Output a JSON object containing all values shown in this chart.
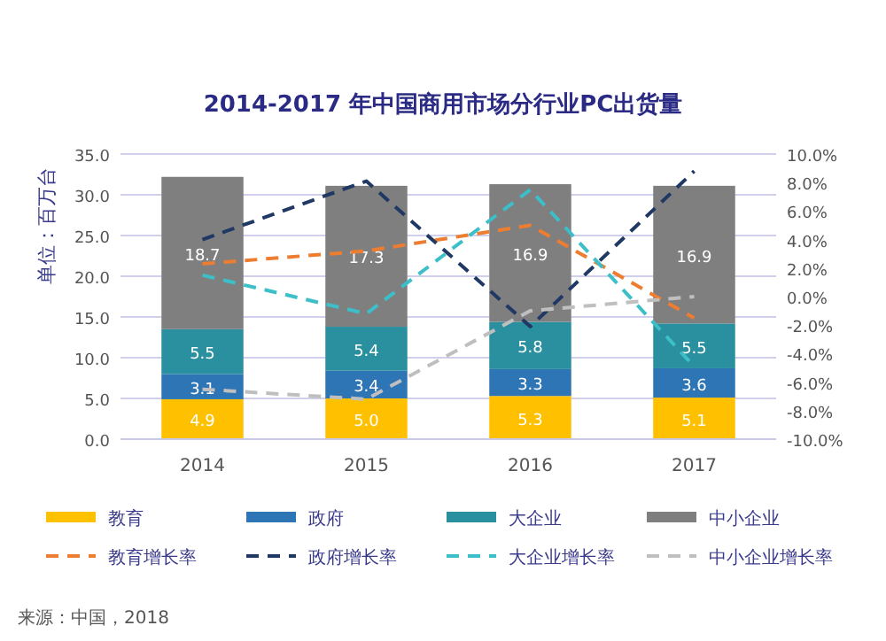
{
  "chart_data": {
    "type": "bar",
    "title": "2014-2017 年中国商用市场分行业PC出货量",
    "ylabel": "单位：百万台",
    "categories": [
      "2014",
      "2015",
      "2016",
      "2017"
    ],
    "stacked": true,
    "grid": "y",
    "legend": "bottom",
    "ylim": [
      0,
      35
    ],
    "yticks": [
      {
        "value": 0,
        "label": "0.0"
      },
      {
        "value": 5,
        "label": "5.0"
      },
      {
        "value": 10,
        "label": "10.0"
      },
      {
        "value": 15,
        "label": "15.0"
      },
      {
        "value": 20,
        "label": "20.0"
      },
      {
        "value": 25,
        "label": "25.0"
      },
      {
        "value": 30,
        "label": "30.0"
      },
      {
        "value": 35,
        "label": "35.0"
      }
    ],
    "y2lim": [
      -10,
      10
    ],
    "y2ticks": [
      {
        "value": -10,
        "label": "-10.0%"
      },
      {
        "value": -8,
        "label": "-8.0%"
      },
      {
        "value": -6,
        "label": "-6.0%"
      },
      {
        "value": -4,
        "label": "-4.0%"
      },
      {
        "value": -2,
        "label": "-2.0%"
      },
      {
        "value": 0,
        "label": "0.0%"
      },
      {
        "value": 2,
        "label": "2.0%"
      },
      {
        "value": 4,
        "label": "4.0%"
      },
      {
        "value": 6,
        "label": "6.0%"
      },
      {
        "value": 8,
        "label": "8.0%"
      },
      {
        "value": 10,
        "label": "10.0%"
      }
    ],
    "series": [
      {
        "name": "教育",
        "color": "#ffc000",
        "values": [
          4.9,
          5.0,
          5.3,
          5.1
        ],
        "value_labels": [
          "4.9",
          "5.0",
          "5.3",
          "5.1"
        ]
      },
      {
        "name": "政府",
        "color": "#2e75b6",
        "values": [
          3.1,
          3.4,
          3.3,
          3.6
        ],
        "value_labels": [
          "3.1",
          "3.4",
          "3.3",
          "3.6"
        ]
      },
      {
        "name": "大企业",
        "color": "#2a8f9e",
        "values": [
          5.5,
          5.4,
          5.8,
          5.5
        ],
        "value_labels": [
          "5.5",
          "5.4",
          "5.8",
          "5.5"
        ]
      },
      {
        "name": "中小企业",
        "color": "#7f7f7f",
        "values": [
          18.7,
          17.3,
          16.9,
          16.9
        ],
        "value_labels": [
          "18.7",
          "17.3",
          "16.9",
          "16.9"
        ]
      },
      {
        "name": "教育增长率",
        "type": "line",
        "axis": "y2",
        "line_style": "dashed",
        "color": "#ed7d31",
        "values": [
          2.3,
          3.2,
          5.0,
          -1.5
        ]
      },
      {
        "name": "政府增长率",
        "type": "line",
        "axis": "y2",
        "line_style": "dashed",
        "color": "#1f3864",
        "values": [
          4.0,
          8.1,
          -2.1,
          8.8
        ]
      },
      {
        "name": "大企业增长率",
        "type": "line",
        "axis": "y2",
        "line_style": "dashed",
        "color": "#3cbfc8",
        "values": [
          1.5,
          -1.2,
          7.5,
          -4.9
        ]
      },
      {
        "name": "中小企业增长率",
        "type": "line",
        "axis": "y2",
        "line_style": "dashed",
        "color": "#bfbfbf",
        "values": [
          -6.5,
          -7.2,
          -1.0,
          0.0
        ]
      }
    ],
    "annotations": [
      "来源：中国，2018"
    ]
  }
}
